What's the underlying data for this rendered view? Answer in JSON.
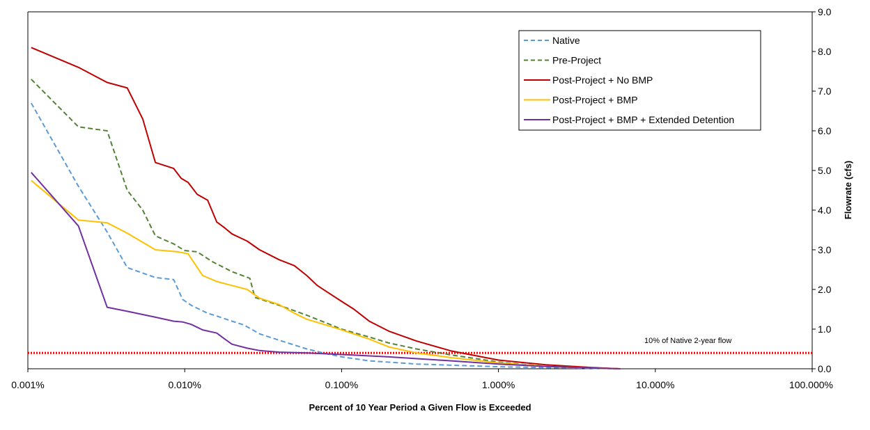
{
  "chart_data": {
    "type": "line",
    "xscale": "log",
    "xlabel": "Percent of 10 Year Period a Given Flow is Exceeded",
    "ylabel": "Flowrate (cfs)",
    "xlim": [
      0.001,
      100
    ],
    "ylim": [
      0,
      9
    ],
    "x_tick_values": [
      0.001,
      0.01,
      0.1,
      1,
      10,
      100
    ],
    "x_tick_labels": [
      "0.001%",
      "0.010%",
      "0.100%",
      "1.000%",
      "10.000%",
      "100.000%"
    ],
    "y_tick_values": [
      0,
      1,
      2,
      3,
      4,
      5,
      6,
      7,
      8,
      9
    ],
    "y_tick_labels": [
      "0.0",
      "1.0",
      "2.0",
      "3.0",
      "4.0",
      "5.0",
      "6.0",
      "7.0",
      "8.0",
      "9.0"
    ],
    "y_axis_position": "right",
    "grid": false,
    "legend_position": "top-right",
    "series": [
      {
        "name": "Native",
        "color": "#5b9bd5",
        "dash": "dashed",
        "x": [
          0.00105,
          0.0021,
          0.0032,
          0.0043,
          0.0065,
          0.0085,
          0.0097,
          0.011,
          0.014,
          0.016,
          0.02,
          0.024,
          0.03,
          0.04,
          0.06,
          0.08,
          0.1,
          0.15,
          0.3,
          0.6,
          1.0,
          2.0,
          4.0,
          6.0
        ],
        "y": [
          6.7,
          4.6,
          3.45,
          2.55,
          2.3,
          2.25,
          1.75,
          1.6,
          1.4,
          1.33,
          1.2,
          1.1,
          0.88,
          0.72,
          0.5,
          0.38,
          0.3,
          0.2,
          0.12,
          0.08,
          0.05,
          0.03,
          0.01,
          0.0
        ]
      },
      {
        "name": "Pre-Project",
        "color": "#548235",
        "dash": "dashed",
        "x": [
          0.00105,
          0.0021,
          0.0032,
          0.0043,
          0.0054,
          0.0065,
          0.0085,
          0.01,
          0.012,
          0.015,
          0.02,
          0.026,
          0.028,
          0.04,
          0.06,
          0.1,
          0.15,
          0.2,
          0.3,
          0.5,
          1.0,
          2.0,
          4.0,
          6.0
        ],
        "y": [
          7.3,
          6.1,
          6.0,
          4.5,
          4.0,
          3.35,
          3.15,
          2.98,
          2.95,
          2.7,
          2.45,
          2.28,
          1.8,
          1.6,
          1.35,
          1.0,
          0.8,
          0.65,
          0.5,
          0.35,
          0.17,
          0.06,
          0.02,
          0.0
        ]
      },
      {
        "name": "Post-Project + No BMP",
        "color": "#c00000",
        "dash": "solid",
        "x": [
          0.00105,
          0.0021,
          0.0032,
          0.0043,
          0.0054,
          0.0065,
          0.0085,
          0.0095,
          0.0105,
          0.012,
          0.014,
          0.016,
          0.018,
          0.02,
          0.025,
          0.03,
          0.04,
          0.05,
          0.06,
          0.07,
          0.08,
          0.1,
          0.12,
          0.15,
          0.2,
          0.3,
          0.5,
          1.0,
          2.0,
          3.0,
          4.0,
          6.0
        ],
        "y": [
          8.1,
          7.6,
          7.22,
          7.08,
          6.3,
          5.2,
          5.05,
          4.8,
          4.7,
          4.4,
          4.25,
          3.7,
          3.55,
          3.4,
          3.22,
          3.0,
          2.75,
          2.6,
          2.35,
          2.1,
          1.95,
          1.7,
          1.5,
          1.2,
          0.95,
          0.7,
          0.45,
          0.22,
          0.1,
          0.06,
          0.03,
          0.0
        ]
      },
      {
        "name": "Post-Project + BMP",
        "color": "#ffc000",
        "dash": "solid",
        "x": [
          0.00105,
          0.0021,
          0.0032,
          0.0043,
          0.0065,
          0.009,
          0.0105,
          0.013,
          0.016,
          0.02,
          0.025,
          0.03,
          0.04,
          0.05,
          0.06,
          0.08,
          0.1,
          0.15,
          0.2,
          0.3,
          0.5,
          1.0,
          2.0,
          4.0,
          6.0
        ],
        "y": [
          4.75,
          3.75,
          3.68,
          3.42,
          3.0,
          2.95,
          2.9,
          2.35,
          2.2,
          2.1,
          2.0,
          1.78,
          1.62,
          1.4,
          1.25,
          1.1,
          0.98,
          0.75,
          0.55,
          0.4,
          0.28,
          0.15,
          0.06,
          0.02,
          0.0
        ]
      },
      {
        "name": "Post-Project + BMP + Extended Detention",
        "color": "#7030a0",
        "dash": "solid",
        "x": [
          0.00105,
          0.0021,
          0.0032,
          0.0043,
          0.0065,
          0.0085,
          0.0097,
          0.011,
          0.013,
          0.016,
          0.018,
          0.02,
          0.025,
          0.03,
          0.04,
          0.06,
          0.1,
          0.2,
          0.5,
          1.0,
          2.0,
          4.0,
          6.0
        ],
        "y": [
          4.95,
          3.6,
          1.55,
          1.45,
          1.3,
          1.2,
          1.18,
          1.12,
          0.98,
          0.9,
          0.75,
          0.62,
          0.52,
          0.46,
          0.42,
          0.4,
          0.36,
          0.3,
          0.2,
          0.12,
          0.06,
          0.02,
          0.0
        ]
      }
    ],
    "reference_line": {
      "label": "10% of Native 2-year flow",
      "y": 0.4,
      "color": "#ff0000",
      "style": "dotted"
    }
  }
}
